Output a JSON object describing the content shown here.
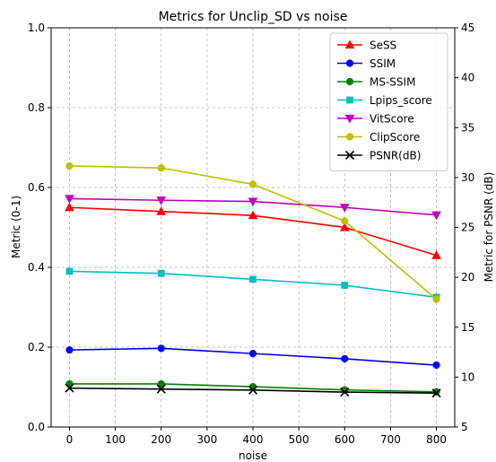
{
  "chart_data": {
    "type": "line",
    "title": "Metrics for Unclip_SD vs noise",
    "xlabel": "noise",
    "ylabel": "Metric (0-1)",
    "y2label": "Metric for PSNR (dB)",
    "xlim": [
      -40,
      840
    ],
    "ylim": [
      0,
      1
    ],
    "y2lim": [
      5,
      45
    ],
    "xticks": [
      0,
      100,
      200,
      300,
      400,
      500,
      600,
      700,
      800
    ],
    "xtick_labels": [
      "0",
      "100",
      "200",
      "300",
      "400",
      "500",
      "600",
      "700",
      "800"
    ],
    "yticks": [
      0,
      0.2,
      0.4,
      0.6,
      0.8,
      1.0
    ],
    "ytick_labels": [
      "0.0",
      "0.2",
      "0.4",
      "0.6",
      "0.8",
      "1.0"
    ],
    "y2ticks": [
      5,
      10,
      15,
      20,
      25,
      30,
      35,
      40,
      45
    ],
    "y2tick_labels": [
      "5",
      "10",
      "15",
      "20",
      "25",
      "30",
      "35",
      "40",
      "45"
    ],
    "grid": true,
    "legend_position": "top-right",
    "x": [
      0,
      200,
      400,
      600,
      800
    ],
    "series": [
      {
        "name": "SeSS",
        "color": "#ff0000",
        "marker": "triangle-up",
        "axis": "left",
        "values": [
          0.55,
          0.54,
          0.53,
          0.5,
          0.43
        ]
      },
      {
        "name": "SSIM",
        "color": "#0000ff",
        "marker": "circle",
        "axis": "left",
        "values": [
          0.193,
          0.197,
          0.184,
          0.171,
          0.155
        ]
      },
      {
        "name": "MS-SSIM",
        "color": "#008000",
        "marker": "circle",
        "axis": "left",
        "values": [
          0.108,
          0.108,
          0.101,
          0.093,
          0.088
        ]
      },
      {
        "name": "Lpips_score",
        "color": "#00bfbf",
        "marker": "square",
        "axis": "left",
        "values": [
          0.39,
          0.385,
          0.37,
          0.355,
          0.325
        ]
      },
      {
        "name": "VitScore",
        "color": "#bf00bf",
        "marker": "triangle-down",
        "axis": "left",
        "values": [
          0.572,
          0.568,
          0.565,
          0.55,
          0.531
        ]
      },
      {
        "name": "ClipScore",
        "color": "#bfbf00",
        "marker": "circle",
        "axis": "left",
        "values": [
          0.654,
          0.649,
          0.608,
          0.516,
          0.32
        ]
      },
      {
        "name": "PSNR(dB)",
        "color": "#000000",
        "marker": "x",
        "axis": "right",
        "values": [
          8.9,
          8.8,
          8.7,
          8.5,
          8.4
        ]
      }
    ]
  }
}
